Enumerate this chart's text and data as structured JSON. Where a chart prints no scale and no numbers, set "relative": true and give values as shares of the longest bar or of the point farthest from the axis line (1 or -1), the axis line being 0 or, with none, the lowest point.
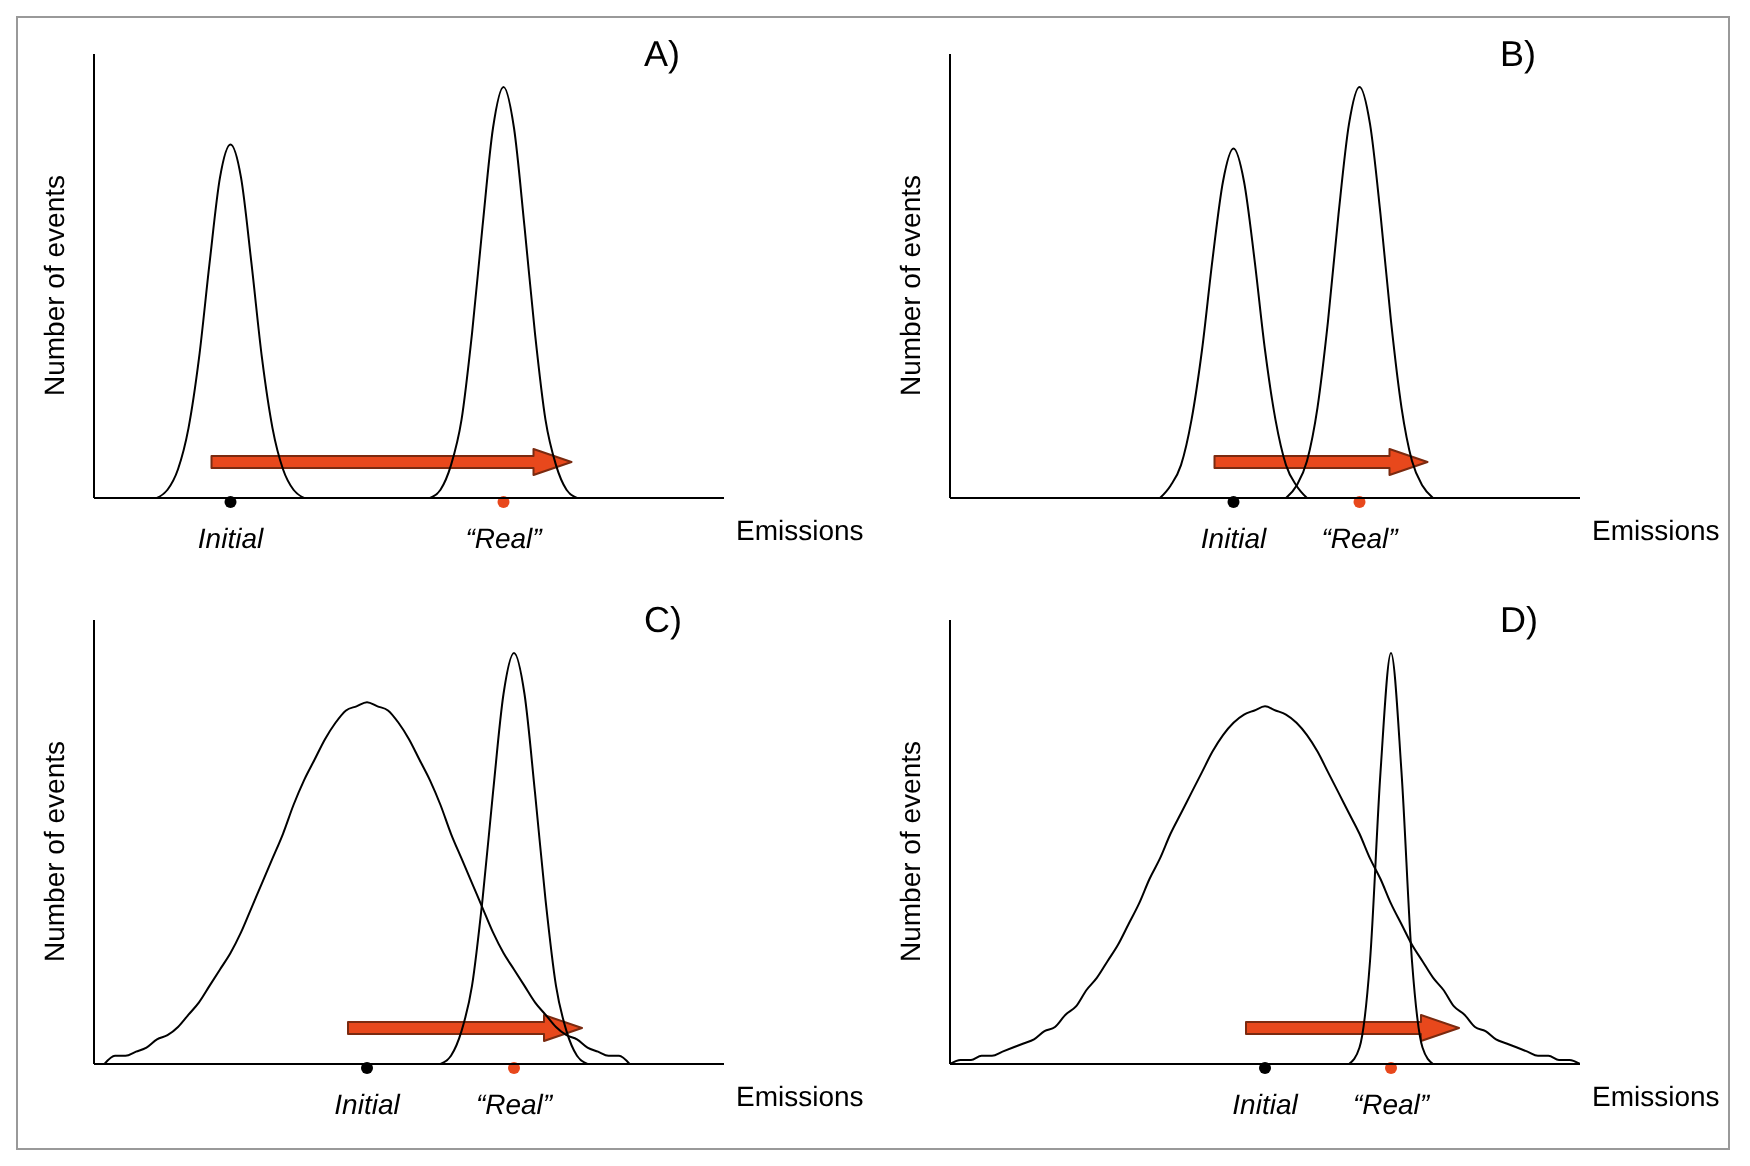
{
  "chart_data": [
    {
      "type": "line",
      "title": "A)",
      "xlabel": "Emissions",
      "ylabel": "Number of events",
      "relative": true,
      "annotations": [
        "Initial",
        "“Real”"
      ],
      "categories": [
        null,
        null,
        null,
        null,
        null,
        null,
        null,
        null,
        null,
        null,
        null,
        null,
        null,
        null,
        null,
        null,
        null,
        null,
        null,
        null,
        null,
        null,
        null,
        null,
        null,
        null,
        null,
        null,
        null,
        null,
        null,
        null,
        null,
        null,
        null,
        null,
        null,
        null,
        null,
        null,
        null,
        null,
        null,
        null,
        null,
        null,
        null,
        null,
        null,
        null,
        null,
        null,
        null,
        null,
        null,
        null,
        null,
        null,
        null,
        null,
        null
      ],
      "series": [
        {
          "color": "#000000",
          "values": [
            null,
            null,
            null,
            null,
            null,
            null,
            0,
            0.02,
            0.07,
            0.17,
            0.34,
            0.57,
            0.78,
            0.86,
            0.78,
            0.57,
            0.34,
            0.17,
            0.07,
            0.02,
            0,
            null,
            null,
            null,
            null,
            null,
            null,
            null,
            null,
            null,
            null,
            null,
            null,
            null,
            null,
            null,
            null,
            null,
            null,
            null,
            null,
            null,
            null,
            null,
            null,
            null,
            null,
            null,
            null,
            null,
            null,
            null,
            null,
            null,
            null,
            null,
            null,
            null,
            null,
            null,
            null
          ]
        },
        {
          "color": "#000000",
          "values": [
            null,
            null,
            null,
            null,
            null,
            null,
            null,
            null,
            null,
            null,
            null,
            null,
            null,
            null,
            null,
            null,
            null,
            null,
            null,
            null,
            null,
            null,
            null,
            null,
            null,
            null,
            null,
            null,
            null,
            null,
            null,
            null,
            0,
            0.02,
            0.08,
            0.19,
            0.4,
            0.66,
            0.9,
            1,
            0.9,
            0.66,
            0.4,
            0.19,
            0.08,
            0.02,
            0,
            null,
            null,
            null,
            null,
            null,
            null,
            null,
            null,
            null,
            null,
            null,
            null,
            null,
            null
          ]
        }
      ]
    },
    {
      "type": "line",
      "title": "B)",
      "xlabel": "Emissions",
      "ylabel": "Number of events",
      "relative": true,
      "annotations": [
        "Initial",
        "“Real”"
      ],
      "categories": [
        null,
        null,
        null,
        null,
        null,
        null,
        null,
        null,
        null,
        null,
        null,
        null,
        null,
        null,
        null,
        null,
        null,
        null,
        null,
        null,
        null,
        null,
        null,
        null,
        null,
        null,
        null,
        null,
        null,
        null,
        null,
        null,
        null,
        null,
        null,
        null,
        null,
        null,
        null,
        null,
        null,
        null,
        null,
        null,
        null,
        null,
        null,
        null,
        null,
        null,
        null,
        null,
        null,
        null,
        null,
        null,
        null,
        null,
        null,
        null,
        null
      ],
      "series": [
        {
          "color": "#000000",
          "values": [
            null,
            null,
            null,
            null,
            null,
            null,
            null,
            null,
            null,
            null,
            null,
            null,
            null,
            null,
            null,
            null,
            null,
            null,
            null,
            null,
            0,
            0.03,
            0.08,
            0.19,
            0.36,
            0.58,
            0.77,
            0.85,
            0.77,
            0.58,
            0.36,
            0.19,
            0.08,
            0.03,
            0,
            null,
            null,
            null,
            null,
            null,
            null,
            null,
            null,
            null,
            null,
            null,
            null,
            null,
            null,
            null,
            null,
            null,
            null,
            null,
            null,
            null,
            null,
            null,
            null,
            null,
            null
          ]
        },
        {
          "color": "#000000",
          "values": [
            null,
            null,
            null,
            null,
            null,
            null,
            null,
            null,
            null,
            null,
            null,
            null,
            null,
            null,
            null,
            null,
            null,
            null,
            null,
            null,
            null,
            null,
            null,
            null,
            null,
            null,
            null,
            null,
            null,
            null,
            null,
            null,
            0,
            0.03,
            0.09,
            0.22,
            0.43,
            0.69,
            0.91,
            1,
            0.91,
            0.69,
            0.43,
            0.22,
            0.09,
            0.03,
            0,
            null,
            null,
            null,
            null,
            null,
            null,
            null,
            null,
            null,
            null,
            null,
            null,
            null,
            null
          ]
        }
      ]
    },
    {
      "type": "line",
      "title": "C)",
      "xlabel": "Emissions",
      "ylabel": "Number of events",
      "relative": true,
      "annotations": [
        "Initial",
        "“Real”"
      ],
      "categories": [
        null,
        null,
        null,
        null,
        null,
        null,
        null,
        null,
        null,
        null,
        null,
        null,
        null,
        null,
        null,
        null,
        null,
        null,
        null,
        null,
        null,
        null,
        null,
        null,
        null,
        null,
        null,
        null,
        null,
        null,
        null,
        null,
        null,
        null,
        null,
        null,
        null,
        null,
        null,
        null,
        null,
        null,
        null,
        null,
        null,
        null,
        null,
        null,
        null,
        null,
        null,
        null,
        null,
        null,
        null,
        null,
        null,
        null,
        null,
        null,
        null
      ],
      "series": [
        {
          "color": "#000000",
          "values": [
            null,
            0,
            0.02,
            0.02,
            0.03,
            0.04,
            0.06,
            0.07,
            0.09,
            0.12,
            0.15,
            0.19,
            0.23,
            0.27,
            0.32,
            0.38,
            0.44,
            0.5,
            0.56,
            0.63,
            0.69,
            0.74,
            0.79,
            0.83,
            0.86,
            0.87,
            0.88,
            0.87,
            0.86,
            0.83,
            0.79,
            0.74,
            0.69,
            0.63,
            0.56,
            0.5,
            0.44,
            0.38,
            0.32,
            0.27,
            0.23,
            0.19,
            0.15,
            0.12,
            0.09,
            0.07,
            0.06,
            0.04,
            0.03,
            0.02,
            0.02,
            0,
            null,
            null,
            null,
            null,
            null,
            null,
            null,
            null,
            null
          ]
        },
        {
          "color": "#000000",
          "values": [
            null,
            null,
            null,
            null,
            null,
            null,
            null,
            null,
            null,
            null,
            null,
            null,
            null,
            null,
            null,
            null,
            null,
            null,
            null,
            null,
            null,
            null,
            null,
            null,
            null,
            null,
            null,
            null,
            null,
            null,
            null,
            null,
            null,
            0,
            0.02,
            0.08,
            0.19,
            0.4,
            0.66,
            0.9,
            1,
            0.9,
            0.66,
            0.4,
            0.19,
            0.08,
            0.02,
            0,
            null,
            null,
            null,
            null,
            null,
            null,
            null,
            null,
            null,
            null,
            null,
            null,
            null
          ]
        }
      ]
    },
    {
      "type": "line",
      "title": "D)",
      "xlabel": "Emissions",
      "ylabel": "Number of events",
      "relative": true,
      "annotations": [
        "Initial",
        "“Real”"
      ],
      "categories": [
        null,
        null,
        null,
        null,
        null,
        null,
        null,
        null,
        null,
        null,
        null,
        null,
        null,
        null,
        null,
        null,
        null,
        null,
        null,
        null,
        null,
        null,
        null,
        null,
        null,
        null,
        null,
        null,
        null,
        null,
        null,
        null,
        null,
        null,
        null,
        null,
        null,
        null,
        null,
        null,
        null,
        null,
        null,
        null,
        null,
        null,
        null,
        null,
        null,
        null,
        null,
        null,
        null,
        null,
        null,
        null,
        null,
        null,
        null,
        null,
        null
      ],
      "series": [
        {
          "color": "#000000",
          "values": [
            0,
            0.01,
            0.01,
            0.02,
            0.02,
            0.03,
            0.04,
            0.05,
            0.06,
            0.08,
            0.09,
            0.12,
            0.14,
            0.18,
            0.21,
            0.25,
            0.29,
            0.34,
            0.39,
            0.45,
            0.5,
            0.56,
            0.61,
            0.66,
            0.71,
            0.76,
            0.8,
            0.83,
            0.85,
            0.86,
            0.87,
            0.86,
            0.85,
            0.83,
            0.8,
            0.76,
            0.71,
            0.66,
            0.61,
            0.56,
            0.5,
            0.45,
            0.39,
            0.34,
            0.29,
            0.25,
            0.21,
            0.18,
            0.14,
            0.12,
            0.09,
            0.08,
            0.06,
            0.05,
            0.04,
            0.03,
            0.02,
            0.02,
            0.01,
            0.01,
            0
          ]
        },
        {
          "color": "#000000",
          "values": [
            null,
            null,
            null,
            null,
            null,
            null,
            null,
            null,
            null,
            null,
            null,
            null,
            null,
            null,
            null,
            null,
            null,
            null,
            null,
            null,
            null,
            null,
            null,
            null,
            null,
            null,
            null,
            null,
            null,
            null,
            null,
            null,
            null,
            null,
            null,
            null,
            null,
            null,
            0,
            0.04,
            0.25,
            0.71,
            1,
            0.71,
            0.25,
            0.04,
            0,
            null,
            null,
            null,
            null,
            null,
            null,
            null,
            null,
            null,
            null,
            null,
            null,
            null,
            null
          ]
        }
      ]
    }
  ]
}
